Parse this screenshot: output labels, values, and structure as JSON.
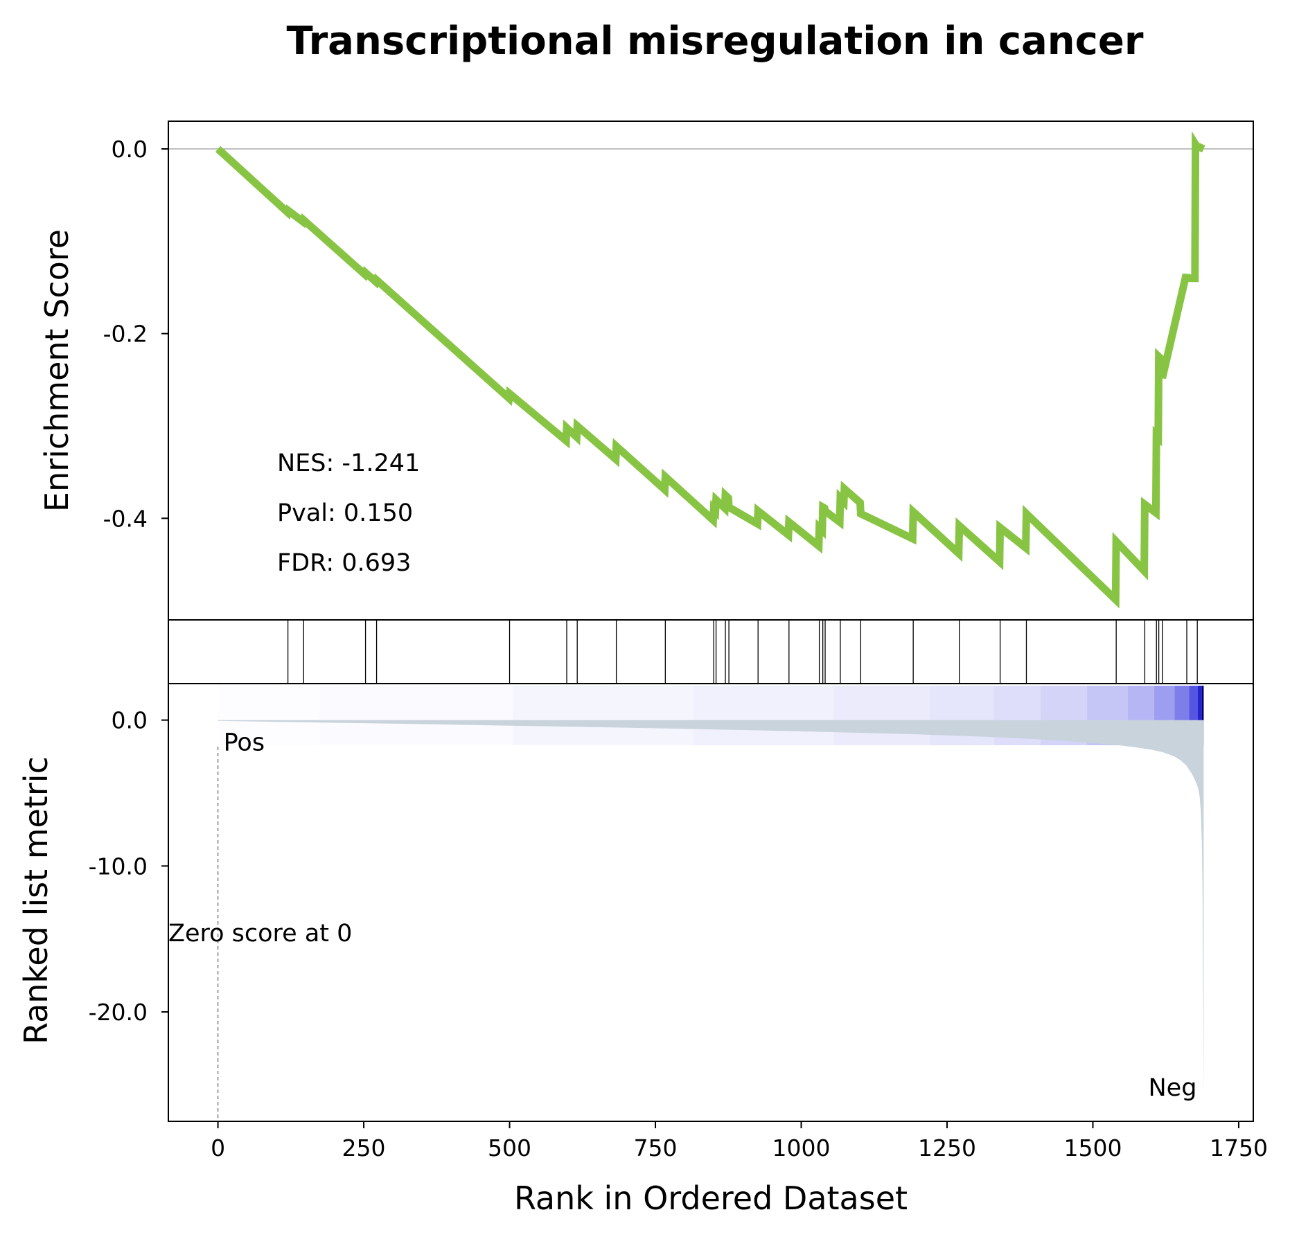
{
  "chart_data": {
    "type": "line",
    "title": "Transcriptional misregulation in cancer",
    "xlabel": "Rank in Ordered Dataset",
    "xlim": [
      -85,
      1775
    ],
    "xticks": [
      0,
      250,
      500,
      750,
      1000,
      1250,
      1500,
      1750
    ],
    "colors": {
      "es_line": "#88c444",
      "metric_fill": "#c8d3dc",
      "pos": "#ff0000",
      "neg": "#0000ff"
    },
    "panels": {
      "enrichment": {
        "ylabel": "Enrichment Score",
        "ylim": [
          -0.51,
          0.03
        ],
        "yticks": [
          {
            "value": 0.0,
            "label": "0.0"
          },
          {
            "value": -0.2,
            "label": "-0.2"
          },
          {
            "value": -0.4,
            "label": "-0.4"
          }
        ],
        "stats": [
          "NES: -1.241",
          "Pval: 0.150",
          "FDR: 0.693"
        ],
        "series": [
          {
            "x": [
              0,
              120,
              121,
              146,
              147,
              252,
              253,
              271,
              272,
              499,
              500,
              597,
              598,
              615,
              616,
              682,
              683,
              766,
              767,
              849,
              850,
              853,
              854,
              869,
              870,
              875,
              876,
              925,
              926,
              978,
              979,
              1030,
              1031,
              1036,
              1037,
              1040,
              1041,
              1066,
              1067,
              1073,
              1074,
              1101,
              1102,
              1191,
              1192,
              1270,
              1271,
              1340,
              1341,
              1385,
              1386,
              1539,
              1540,
              1588,
              1589,
              1608,
              1609,
              1612,
              1613,
              1618,
              1619,
              1660,
              1661,
              1675,
              1676,
              1678,
              1679,
              1690
            ],
            "y": [
              0.0,
              -0.069,
              -0.067,
              -0.079,
              -0.077,
              -0.136,
              -0.134,
              -0.144,
              -0.142,
              -0.27,
              -0.265,
              -0.316,
              -0.302,
              -0.312,
              -0.3,
              -0.336,
              -0.322,
              -0.369,
              -0.355,
              -0.402,
              -0.39,
              -0.392,
              -0.38,
              -0.389,
              -0.375,
              -0.378,
              -0.388,
              -0.406,
              -0.392,
              -0.418,
              -0.404,
              -0.43,
              -0.41,
              -0.413,
              -0.388,
              -0.389,
              -0.392,
              -0.404,
              -0.378,
              -0.382,
              -0.368,
              -0.383,
              -0.395,
              -0.422,
              -0.393,
              -0.438,
              -0.408,
              -0.447,
              -0.41,
              -0.432,
              -0.395,
              -0.488,
              -0.425,
              -0.457,
              -0.385,
              -0.394,
              -0.31,
              -0.312,
              -0.225,
              -0.228,
              -0.248,
              -0.136,
              -0.14,
              -0.14,
              0.005,
              0.003,
              0.003,
              0.0
            ]
          }
        ]
      },
      "hits": {
        "positions": [
          120,
          147,
          253,
          272,
          500,
          598,
          616,
          683,
          767,
          850,
          854,
          870,
          876,
          926,
          979,
          1031,
          1037,
          1041,
          1067,
          1102,
          1192,
          1271,
          1341,
          1386,
          1540,
          1589,
          1609,
          1613,
          1619,
          1661,
          1679
        ]
      },
      "gradient_bar": {
        "segments": [
          {
            "start": 0,
            "end": 175,
            "color": "#fdfdff"
          },
          {
            "start": 175,
            "end": 505,
            "color": "#fafaff"
          },
          {
            "start": 505,
            "end": 815,
            "color": "#f5f5fe"
          },
          {
            "start": 815,
            "end": 1055,
            "color": "#f1f1fd"
          },
          {
            "start": 1055,
            "end": 1220,
            "color": "#ebebfc"
          },
          {
            "start": 1220,
            "end": 1330,
            "color": "#e5e5fb"
          },
          {
            "start": 1330,
            "end": 1410,
            "color": "#dedefa"
          },
          {
            "start": 1410,
            "end": 1490,
            "color": "#d4d4f8"
          },
          {
            "start": 1490,
            "end": 1560,
            "color": "#c6c6f6"
          },
          {
            "start": 1560,
            "end": 1605,
            "color": "#b6b6f4"
          },
          {
            "start": 1605,
            "end": 1640,
            "color": "#9e9ef0"
          },
          {
            "start": 1640,
            "end": 1665,
            "color": "#7e7eea"
          },
          {
            "start": 1665,
            "end": 1680,
            "color": "#5555e2"
          },
          {
            "start": 1680,
            "end": 1687,
            "color": "#2222cc"
          },
          {
            "start": 1687,
            "end": 1690,
            "color": "#00006a"
          }
        ]
      },
      "ranked_metric": {
        "ylabel": "Ranked list metric",
        "ylim": [
          -27.5,
          2.5
        ],
        "yticks": [
          {
            "value": 0.0,
            "label": "0.0"
          },
          {
            "value": -10.0,
            "label": "-10.0"
          },
          {
            "value": -20.0,
            "label": "-20.0"
          }
        ],
        "x": [
          0,
          100,
          200,
          300,
          400,
          500,
          600,
          700,
          800,
          900,
          1000,
          1100,
          1200,
          1300,
          1350,
          1400,
          1450,
          1500,
          1550,
          1580,
          1600,
          1620,
          1640,
          1650,
          1660,
          1670,
          1675,
          1680,
          1683,
          1685,
          1687,
          1688,
          1689,
          1690
        ],
        "values": [
          -0.05,
          -0.12,
          -0.18,
          -0.24,
          -0.31,
          -0.38,
          -0.45,
          -0.52,
          -0.6,
          -0.68,
          -0.77,
          -0.87,
          -0.98,
          -1.12,
          -1.2,
          -1.3,
          -1.42,
          -1.57,
          -1.75,
          -1.9,
          -2.03,
          -2.2,
          -2.5,
          -2.75,
          -3.1,
          -3.7,
          -4.1,
          -4.6,
          -5.2,
          -6.2,
          -8.5,
          -12.0,
          -19.5,
          -26.0
        ],
        "pos_label": "Pos",
        "neg_label": "Neg",
        "zero_label": "Zero score at 0",
        "zero_at": 0
      }
    }
  }
}
